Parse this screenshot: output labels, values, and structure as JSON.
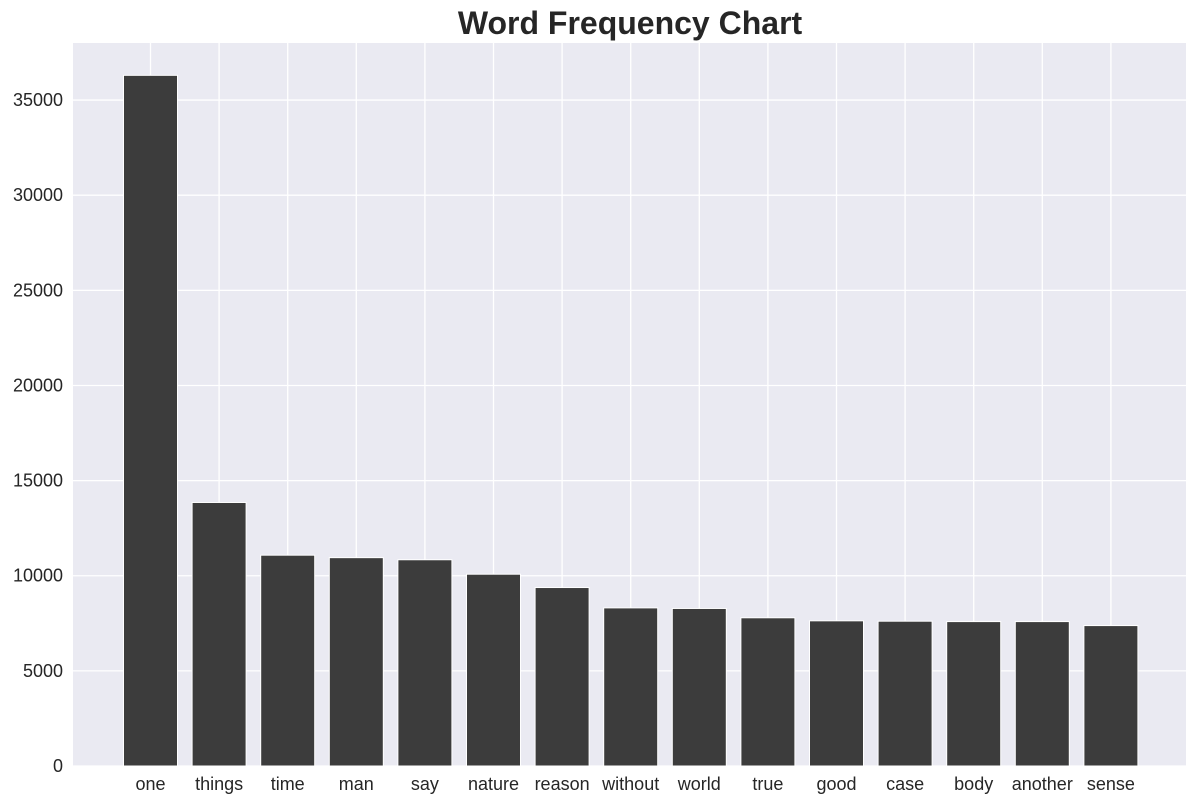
{
  "colors": {
    "plot_background": "#eaeaf2",
    "grid": "#ffffff",
    "bar": "#3c3c3c",
    "bar_edge": "#ffffff",
    "text": "#262626"
  },
  "chart_data": {
    "type": "bar",
    "title": "Word Frequency Chart",
    "xlabel": "",
    "ylabel": "",
    "categories": [
      "one",
      "things",
      "time",
      "man",
      "say",
      "nature",
      "reason",
      "without",
      "world",
      "true",
      "good",
      "case",
      "body",
      "another",
      "sense"
    ],
    "values": [
      36300,
      13850,
      11080,
      10950,
      10840,
      10080,
      9380,
      8310,
      8280,
      7790,
      7630,
      7610,
      7590,
      7590,
      7380
    ],
    "ylim": [
      0,
      38000
    ],
    "yticks": [
      0,
      5000,
      10000,
      15000,
      20000,
      25000,
      30000,
      35000
    ],
    "grid": true,
    "legend": "none"
  }
}
